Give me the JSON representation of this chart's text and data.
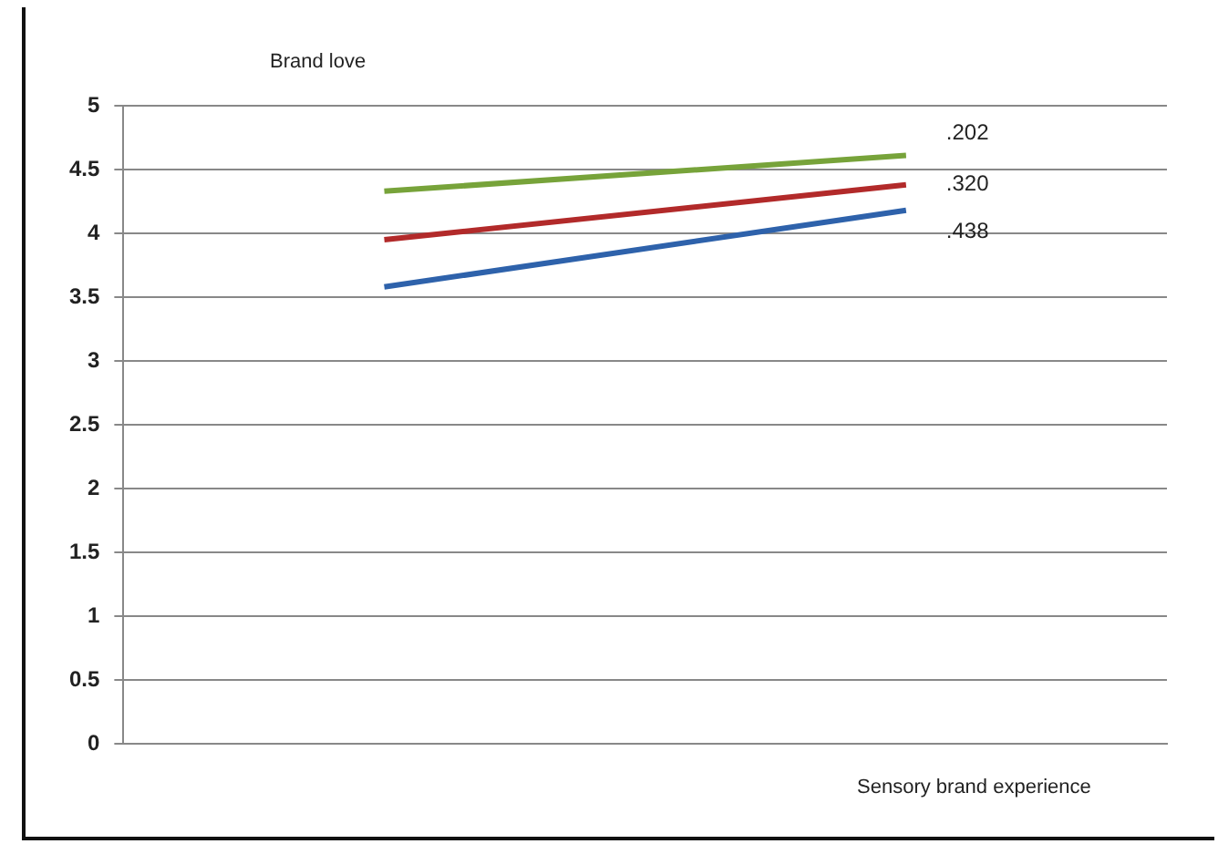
{
  "chart_data": {
    "type": "line",
    "ylabel": "Brand love",
    "xlabel": "Sensory brand experience",
    "categories": [
      null,
      null
    ],
    "series": [
      {
        "color": "#77a33a",
        "values": [
          4.33,
          4.61
        ]
      },
      {
        "color": "#b22a2a",
        "values": [
          3.95,
          4.38
        ]
      },
      {
        "color": "#2e62ab",
        "values": [
          3.58,
          4.18
        ]
      }
    ],
    "ylim": [
      0,
      5
    ],
    "yticks": [
      0,
      0.5,
      1,
      1.5,
      2,
      2.5,
      3,
      3.5,
      4,
      4.5,
      5
    ],
    "grid": "y",
    "marker": "none",
    "line_style": "solid",
    "legend": false,
    "annotations": [
      ".202",
      ".320",
      ".438"
    ]
  }
}
